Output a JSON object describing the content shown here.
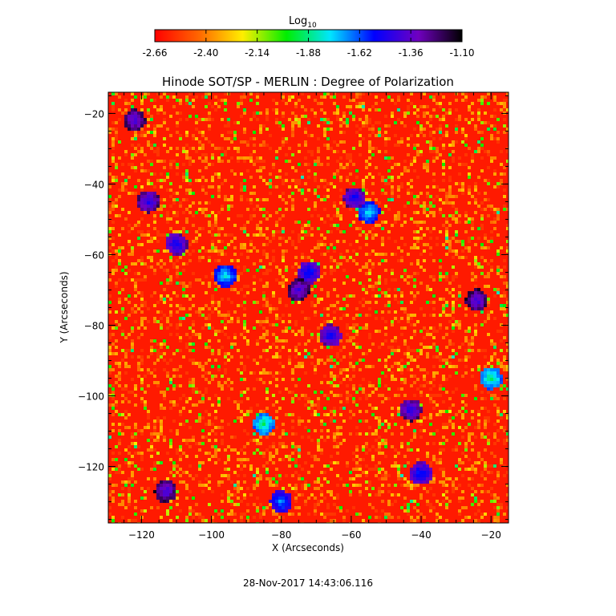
{
  "colorbar": {
    "label": "Log",
    "label_sub": "10",
    "ticks": [
      "-2.66",
      "-2.40",
      "-2.14",
      "-1.88",
      "-1.62",
      "-1.36",
      "-1.10"
    ],
    "range": [
      -2.66,
      -1.1
    ],
    "colors": [
      "#ff0000",
      "#ff6600",
      "#ffee00",
      "#00ee00",
      "#00e5ff",
      "#0000ff",
      "#7000c0",
      "#000000"
    ]
  },
  "chart_data": {
    "type": "heatmap",
    "title": "Hinode SOT/SP - MERLIN : Degree of Polarization",
    "xlabel": "X (Arcseconds)",
    "ylabel": "Y (Arcseconds)",
    "xlim": [
      -129.5,
      -15
    ],
    "ylim": [
      -136,
      -14
    ],
    "xticks": [
      -120,
      -100,
      -80,
      -60,
      -40,
      -20
    ],
    "yticks": [
      -20,
      -40,
      -60,
      -80,
      -100,
      -120
    ],
    "value_unit": "Log10 degree of polarization",
    "background_level": -2.6,
    "features": [
      {
        "x": -122,
        "y": -22,
        "value": -1.45
      },
      {
        "x": -118,
        "y": -45,
        "value": -1.5
      },
      {
        "x": -113,
        "y": -127,
        "value": -1.45
      },
      {
        "x": -110,
        "y": -57,
        "value": -1.55
      },
      {
        "x": -96,
        "y": -66,
        "value": -1.8
      },
      {
        "x": -75,
        "y": -70,
        "value": -1.45
      },
      {
        "x": -72,
        "y": -65,
        "value": -1.6
      },
      {
        "x": -66,
        "y": -83,
        "value": -1.55
      },
      {
        "x": -59,
        "y": -44,
        "value": -1.55
      },
      {
        "x": -55,
        "y": -48,
        "value": -1.8
      },
      {
        "x": -43,
        "y": -104,
        "value": -1.5
      },
      {
        "x": -40,
        "y": -122,
        "value": -1.6
      },
      {
        "x": -24,
        "y": -73,
        "value": -1.45
      },
      {
        "x": -80,
        "y": -130,
        "value": -1.7
      },
      {
        "x": -85,
        "y": -108,
        "value": -1.9
      },
      {
        "x": -20,
        "y": -95,
        "value": -1.9
      }
    ]
  },
  "footer": {
    "timestamp": "28-Nov-2017 14:43:06.116"
  }
}
